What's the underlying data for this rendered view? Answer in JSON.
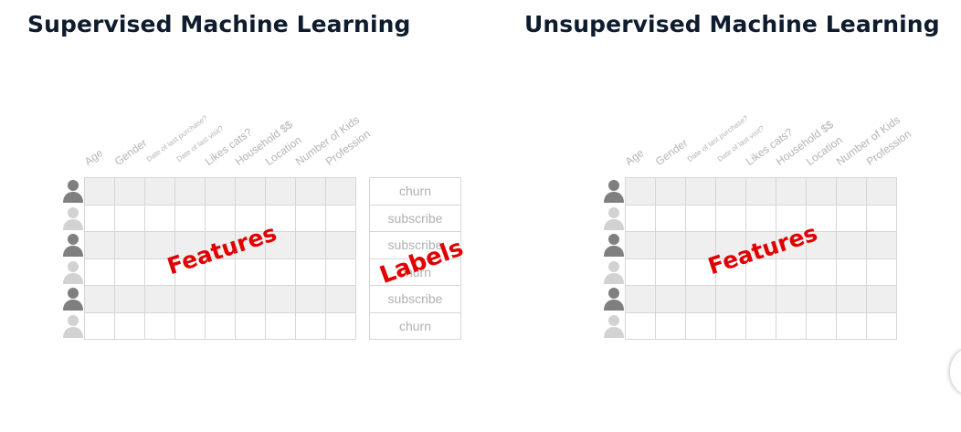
{
  "panels": [
    {
      "title": "Supervised Machine Learning",
      "columns": [
        "Age",
        "Gender",
        "Date of last purchase?",
        "Date of last visit?",
        "Likes cats?",
        "Household $$",
        "Location",
        "Number of Kids",
        "Profession"
      ],
      "overlay_text": "Features",
      "label_overlay_text": "Labels",
      "labels": [
        "churn",
        "subscribe",
        "subscribe",
        "churn",
        "subscribe",
        "churn"
      ]
    },
    {
      "title": "Unsupervised Machine Learning",
      "columns": [
        "Age",
        "Gender",
        "Date of last purchase?",
        "Date of last visit?",
        "Likes cats?",
        "Household $$",
        "Location",
        "Number of Kids",
        "Profession"
      ],
      "overlay_text": "Features"
    }
  ],
  "rows": [
    {
      "avatar": "person-icon",
      "shade": "dark",
      "row_shading": true
    },
    {
      "avatar": "person-icon",
      "shade": "light",
      "row_shading": false
    },
    {
      "avatar": "person-icon",
      "shade": "dark",
      "row_shading": true
    },
    {
      "avatar": "person-icon",
      "shade": "light",
      "row_shading": false
    },
    {
      "avatar": "person-icon",
      "shade": "dark",
      "row_shading": true
    },
    {
      "avatar": "person-icon",
      "shade": "light",
      "row_shading": false
    }
  ],
  "colors": {
    "title": "#0f1c2e",
    "overlay": "#e00000",
    "header_text": "#b4b4b4",
    "label_text": "#b0b0b0",
    "grid_line": "#d6d6d6",
    "row_shading": "#efefef",
    "avatar_dark": "#7f7f7f",
    "avatar_light": "#d2d2d2"
  }
}
